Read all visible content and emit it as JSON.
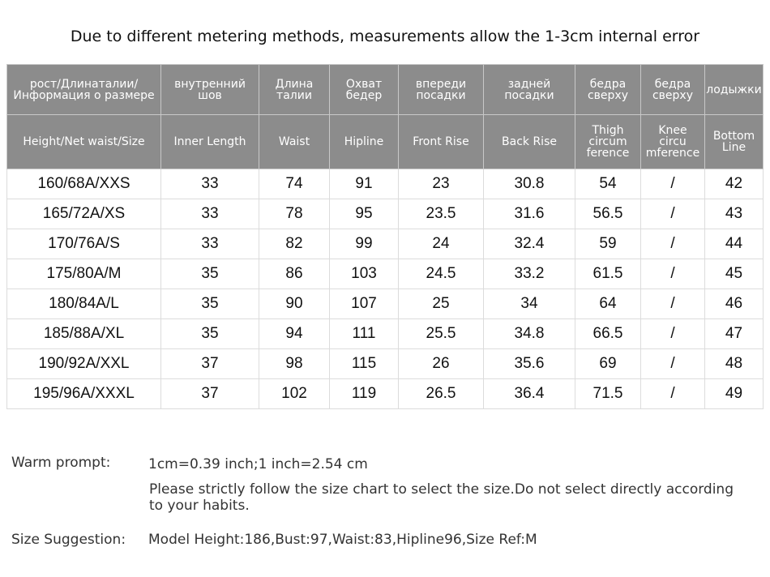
{
  "title": "Due to different metering methods, measurements allow the 1-3cm internal error",
  "table": {
    "header_ru": [
      "рост/Длинаталии/\nИнформация о размере",
      "внутренний\nшов",
      "Длина\nталии",
      "Охват\nбедер",
      "впереди\nпосадки",
      "задней\nпосадки",
      "бедра\nсверху",
      "бедра\nсверху",
      "лодыжки"
    ],
    "header_en": [
      "Height/Net waist/Size",
      "Inner  Length",
      "Waist",
      "Hipline",
      "Front Rise",
      "Back Rise",
      "Thigh\ncircum\nference",
      "Knee\ncircu\nmference",
      "Bottom\nLine"
    ],
    "rows": [
      [
        "160/68A/XXS",
        33,
        74,
        91,
        23,
        30.8,
        54,
        "/",
        42
      ],
      [
        "165/72A/XS",
        33,
        78,
        95,
        23.5,
        31.6,
        56.5,
        "/",
        43
      ],
      [
        "170/76A/S",
        33,
        82,
        99,
        24,
        32.4,
        59,
        "/",
        44
      ],
      [
        "175/80A/M",
        35,
        86,
        103,
        24.5,
        33.2,
        61.5,
        "/",
        45
      ],
      [
        "180/84A/L",
        35,
        90,
        107,
        25,
        34,
        64,
        "/",
        46
      ],
      [
        "185/88A/XL",
        35,
        94,
        111,
        25.5,
        34.8,
        66.5,
        "/",
        47
      ],
      [
        "190/92A/XXL",
        37,
        98,
        115,
        26,
        35.6,
        69,
        "/",
        48
      ],
      [
        "195/96A/XXXL",
        37,
        102,
        119,
        26.5,
        36.4,
        71.5,
        "/",
        49
      ]
    ]
  },
  "notes": {
    "warm_label": "Warm prompt:",
    "conversion": "1cm=0.39 inch;1 inch=2.54 cm",
    "advice": "Please strictly follow the size chart  to select the size.Do not select directly according to your habits.",
    "suggestion_label": "Size Suggestion:",
    "suggestion": "Model Height:186,Bust:97,Waist:83,Hipline96,Size Ref:M"
  }
}
